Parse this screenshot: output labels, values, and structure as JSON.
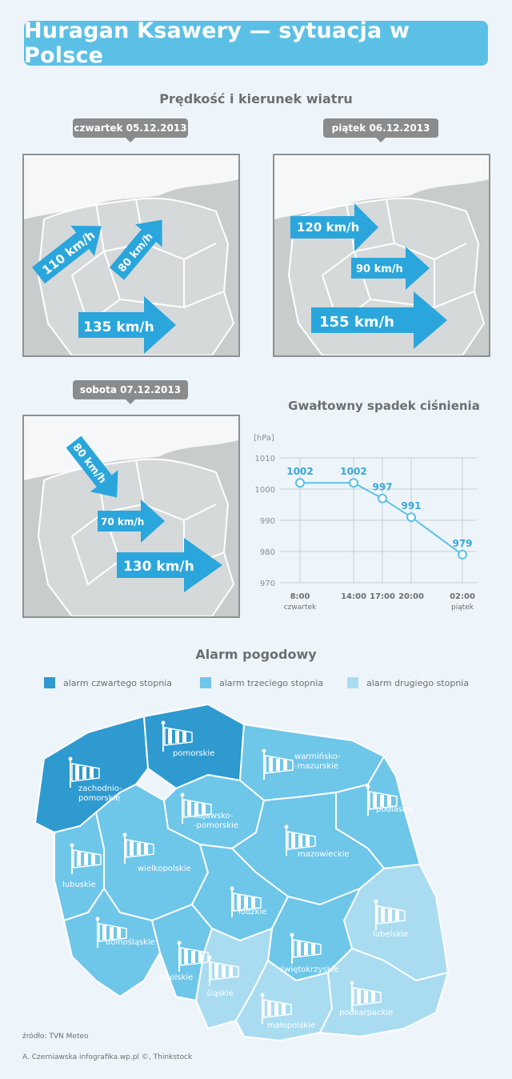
{
  "header": {
    "title": "Huragan Ksawery — sytuacja w Polsce"
  },
  "wind_section": {
    "title": "Prędkość i kierunek wiatru",
    "maps": [
      {
        "date": "czwartek 05.12.2013",
        "arrows": [
          "110 km/h",
          "80 km/h",
          "135 km/h"
        ]
      },
      {
        "date": "piątek 06.12.2013",
        "arrows": [
          "120 km/h",
          "90 km/h",
          "155 km/h"
        ]
      },
      {
        "date": "sobota 07.12.2013",
        "arrows": [
          "80 km/h",
          "70 km/h",
          "130 km/h"
        ]
      }
    ]
  },
  "pressure_section": {
    "title": "Gwałtowny spadek ciśnienia",
    "unit": "[hPa]",
    "x_sub_labels": {
      "first": "czwartek",
      "last": "piątek"
    }
  },
  "chart_data": {
    "type": "line",
    "title": "Gwałtowny spadek ciśnienia",
    "ylabel": "[hPa]",
    "x": [
      "8:00",
      "14:00",
      "17:00",
      "20:00",
      "02:00"
    ],
    "values": [
      1002,
      1002,
      997,
      991,
      979
    ],
    "yticks": [
      1010,
      1000,
      990,
      980,
      970
    ],
    "ylim": [
      970,
      1010
    ],
    "grid": true,
    "colors": {
      "line": "#5cc0e6",
      "labels": "#3aa7d6"
    }
  },
  "alarm_section": {
    "title": "Alarm pogodowy",
    "legend": [
      {
        "label": "alarm czwartego stopnia",
        "color": "#2e9ad0"
      },
      {
        "label": "alarm trzeciego stopnia",
        "color": "#6ec6e9"
      },
      {
        "label": "alarm drugiego stopnia",
        "color": "#a9dcf1"
      }
    ],
    "regions": {
      "zachodniopomorskie": "zachodnio-\npomorskie",
      "pomorskie": "pomorskie",
      "warminsko": "warmińsko-\n-mazurskie",
      "podlaskie": "podlaskie",
      "kujawsko": "kujawsko-\n-pomorskie",
      "lubuskie": "lubuskie",
      "wielkopolskie": "wielkopolskie",
      "mazowieckie": "mazowieckie",
      "lodzkie": "łódzkie",
      "lubelskie": "lubelskie",
      "dolnoslaskie": "dolnośląskie",
      "swietokrzyskie": "świętokrzyskie",
      "opolskie": "opolskie",
      "slaskie": "śląskie",
      "malopolskie": "małopolskie",
      "podkarpackie": "podkarpackie"
    }
  },
  "footer": {
    "source": "źródło: TVN Meteo",
    "credits": "A. Czerniawska infografika.wp.pl ©, Thinkstock"
  }
}
